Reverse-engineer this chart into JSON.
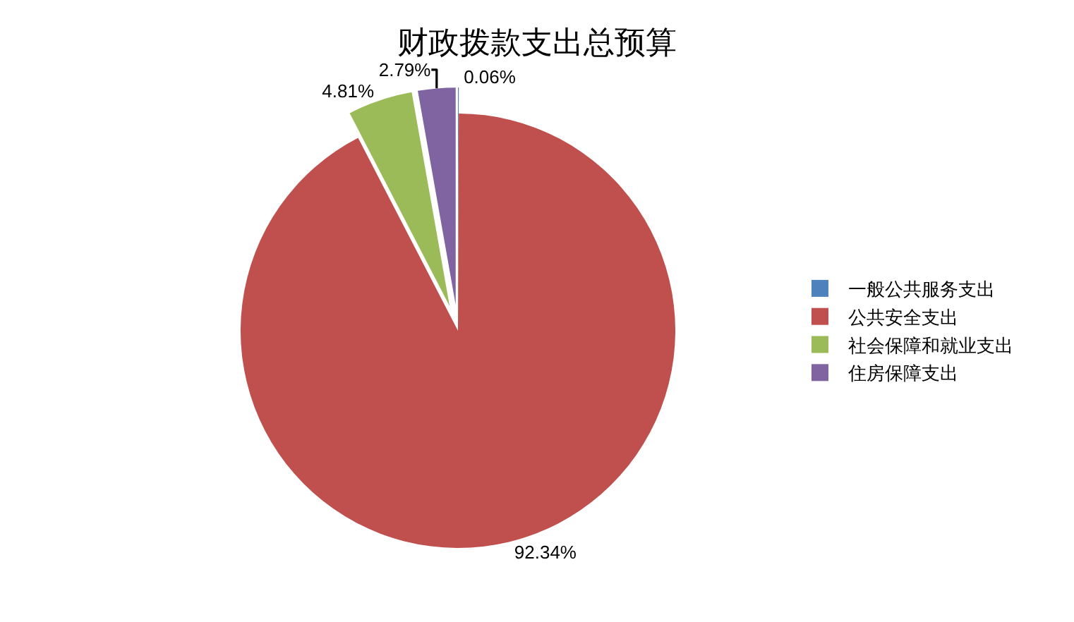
{
  "chart_data": {
    "type": "pie",
    "title": "财政拨款支出总预算",
    "categories": [
      "一般公共服务支出",
      "公共安全支出",
      "社会保障和就业支出",
      "住房保障支出"
    ],
    "values": [
      0.06,
      92.34,
      4.81,
      2.79
    ],
    "colors": [
      "#4f81bd",
      "#c0504d",
      "#9bbb59",
      "#8064a2"
    ],
    "value_labels": [
      "0.06%",
      "92.34%",
      "4.81%",
      "2.79%"
    ],
    "legend": "right"
  }
}
